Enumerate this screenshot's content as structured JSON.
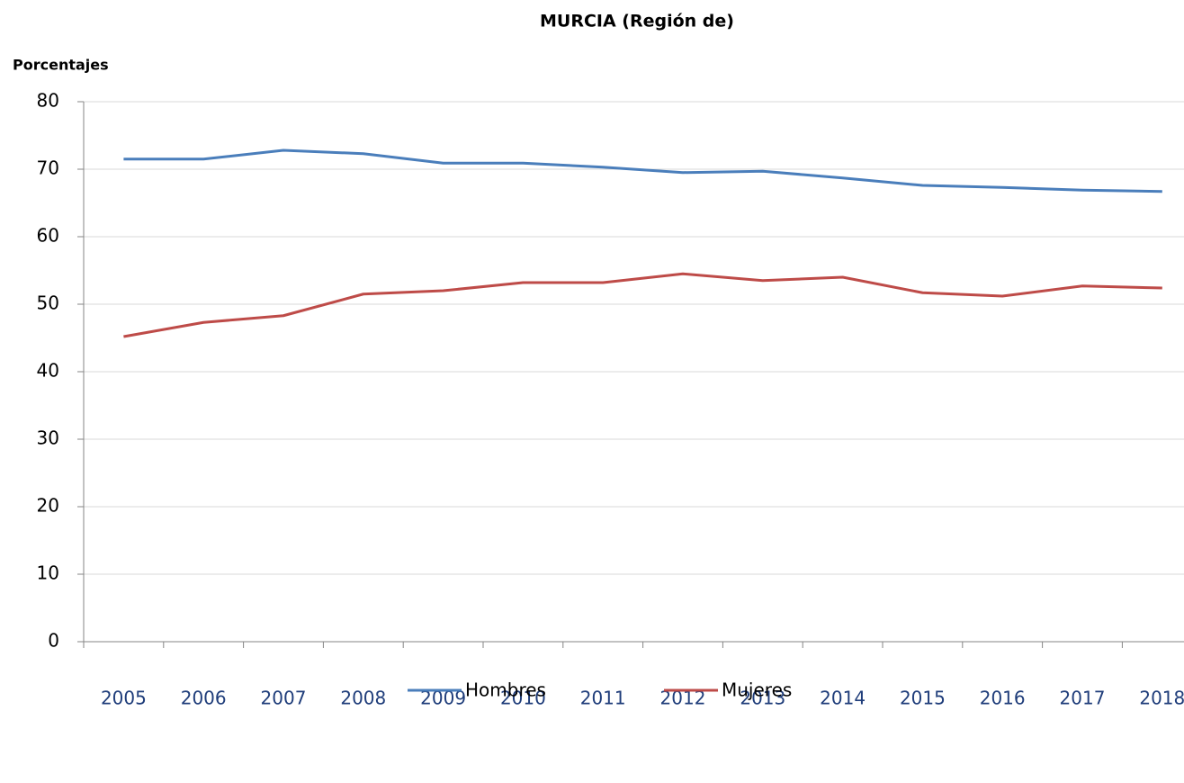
{
  "chart_data": {
    "type": "line",
    "title": "MURCIA (Región de)",
    "y_label": "Porcentajes",
    "categories": [
      "2005",
      "2006",
      "2007",
      "2008",
      "2009",
      "2010",
      "2011",
      "2012",
      "2013",
      "2014",
      "2015",
      "2016",
      "2017",
      "2018"
    ],
    "series": [
      {
        "name": "Hombres",
        "color": "#4a7ebb",
        "values": [
          71.5,
          71.5,
          72.8,
          72.3,
          70.9,
          70.9,
          70.3,
          69.5,
          69.7,
          68.7,
          67.6,
          67.3,
          66.9,
          66.7
        ]
      },
      {
        "name": "Mujeres",
        "color": "#be4b48",
        "values": [
          45.2,
          47.3,
          48.3,
          51.5,
          52.0,
          53.2,
          53.2,
          54.5,
          53.5,
          54.0,
          51.7,
          51.2,
          52.7,
          52.4
        ]
      }
    ],
    "ylim": [
      0,
      80
    ],
    "yticks": [
      0,
      10,
      20,
      30,
      40,
      50,
      60,
      70,
      80
    ],
    "grid": true
  }
}
